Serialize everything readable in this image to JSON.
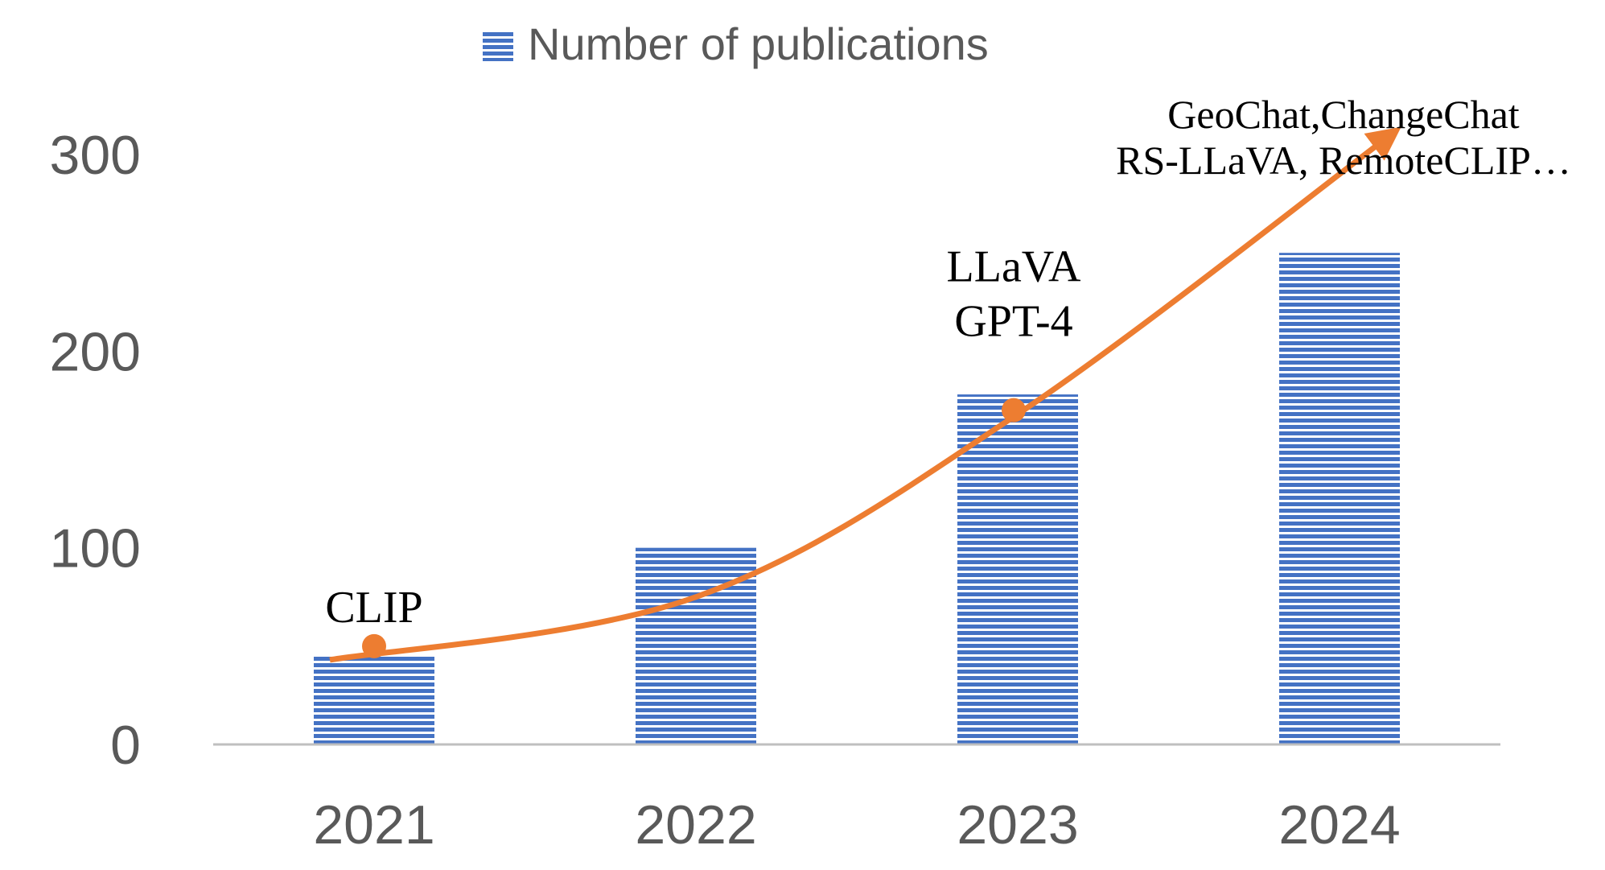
{
  "chart_data": {
    "type": "bar",
    "title": "",
    "xlabel": "",
    "ylabel": "",
    "categories": [
      "2021",
      "2022",
      "2023",
      "2024"
    ],
    "series": [
      {
        "name": "Number of publications",
        "values": [
          45,
          100,
          178,
          250
        ]
      }
    ],
    "ylim": [
      0,
      300
    ],
    "yticks": [
      0,
      100,
      200,
      300
    ],
    "grid": false,
    "legend_position": "top-center",
    "trend": {
      "type": "curve-arrow",
      "points": [
        {
          "x": "2021",
          "y": 43
        },
        {
          "x": "2022",
          "y": 75
        },
        {
          "x": "2023",
          "y": 168
        },
        {
          "x": "2024",
          "y": 312
        }
      ]
    },
    "annotations": [
      {
        "category": "2021",
        "value": 50,
        "lines": [
          "CLIP"
        ],
        "marker": true
      },
      {
        "category": "2023",
        "value": 170,
        "lines": [
          "LLaVA",
          "GPT-4"
        ],
        "marker": true
      },
      {
        "category": "2024",
        "value": 255,
        "lines": [
          "GeoChat,ChangeChat",
          "RS-LLaVA, RemoteCLIP…"
        ],
        "marker": false
      }
    ],
    "colors": {
      "bar": "#4472C4",
      "bar_stripe": "#ffffff",
      "trend": "#ED7D31",
      "axis": "#BFBFBF",
      "tick_text": "#595959",
      "annotation_text": "#000000"
    }
  }
}
